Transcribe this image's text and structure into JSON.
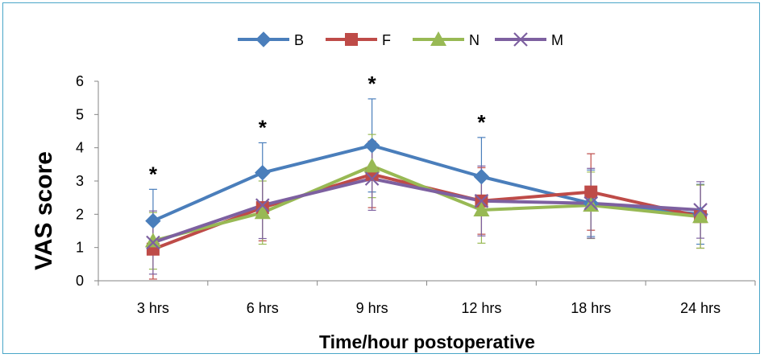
{
  "chart_data": {
    "type": "line",
    "title": "",
    "xlabel": "Time/hour postoperative",
    "ylabel": "VAS score",
    "categories": [
      "3 hrs",
      "6 hrs",
      "9 hrs",
      "12 hrs",
      "18 hrs",
      "24 hrs"
    ],
    "ylim": [
      0,
      6
    ],
    "yticks": [
      "0",
      "1",
      "2",
      "3",
      "4",
      "5",
      "6"
    ],
    "grid": false,
    "legend": "top-center",
    "series": [
      {
        "name": "B",
        "color": "#4a7ebb",
        "marker": "diamond",
        "values": [
          1.8,
          3.25,
          4.07,
          3.13,
          2.33,
          2.0
        ],
        "errors": [
          0.95,
          0.9,
          1.4,
          1.18,
          1.0,
          0.9
        ]
      },
      {
        "name": "F",
        "color": "#be4b48",
        "marker": "square",
        "values": [
          0.95,
          2.2,
          3.2,
          2.4,
          2.67,
          1.93
        ],
        "errors": [
          0.9,
          1.0,
          1.0,
          1.0,
          1.15,
          0.95
        ]
      },
      {
        "name": "N",
        "color": "#98b954",
        "marker": "triangle",
        "values": [
          1.2,
          2.05,
          3.45,
          2.13,
          2.27,
          1.93
        ],
        "errors": [
          0.85,
          0.95,
          0.95,
          1.0,
          1.0,
          0.95
        ]
      },
      {
        "name": "M",
        "color": "#7d60a0",
        "marker": "x",
        "values": [
          1.15,
          2.27,
          3.07,
          2.4,
          2.33,
          2.13
        ],
        "errors": [
          0.95,
          1.0,
          0.95,
          1.05,
          1.05,
          0.85
        ]
      }
    ],
    "annotations": [
      {
        "text": "*",
        "category": "3 hrs"
      },
      {
        "text": "*",
        "category": "6 hrs"
      },
      {
        "text": "*",
        "category": "9 hrs"
      },
      {
        "text": "*",
        "category": "12 hrs"
      }
    ]
  }
}
